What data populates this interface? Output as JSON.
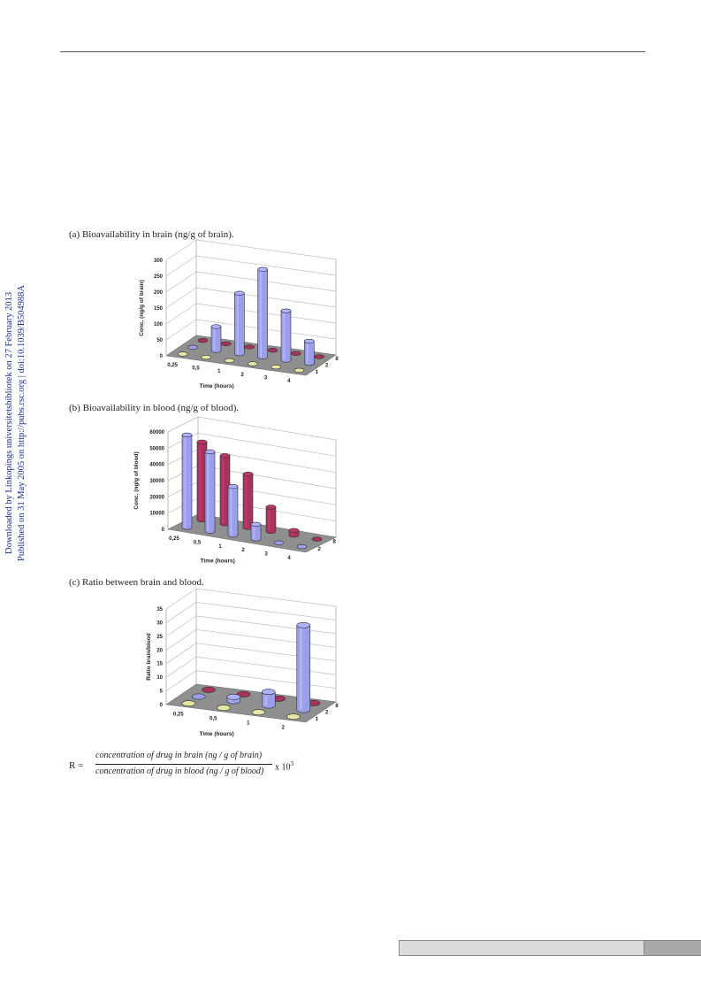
{
  "side_note": {
    "line1": "Downloaded by Linkopings universitetsbibliotek on 27 February 2013",
    "line2": "Published on 31 May 2005 on http://pubs.rsc.org | doi:10.1039/B504988A"
  },
  "colors": {
    "series_blue": "#9b9ee8",
    "series_red": "#a8325e",
    "series_yellow": "#e7e6a6",
    "floor": "#8f8f8f"
  },
  "chart_data": [
    {
      "type": "bar",
      "caption": "(a) Bioavailability in brain (ng/g of brain).",
      "xlabel": "Time (hours)",
      "ylabel": "Conc. (ng/g of brain)",
      "categories": [
        "0,25",
        "0,5",
        "1",
        "2",
        "3",
        "4"
      ],
      "depth_labels": [
        "8",
        "2",
        "1"
      ],
      "yticks": [
        "0",
        "50",
        "100",
        "150",
        "200",
        "250",
        "300"
      ],
      "ylim": [
        0,
        300
      ],
      "series": [
        {
          "name": "8",
          "values": [
            0,
            0,
            0,
            0,
            0,
            0
          ]
        },
        {
          "name": "2",
          "values": [
            0,
            75,
            190,
            275,
            155,
            70
          ]
        },
        {
          "name": "1",
          "values": [
            0,
            0,
            0,
            0,
            0,
            0
          ]
        }
      ]
    },
    {
      "type": "bar",
      "caption": "(b) Bioavailability in blood (ng/g of blood).",
      "xlabel": "Time (hours)",
      "ylabel": "Conc. (ng/g of blood)",
      "categories": [
        "0,25",
        "0,5",
        "1",
        "2",
        "3",
        "4"
      ],
      "depth_labels": [
        "8",
        "2"
      ],
      "yticks": [
        "0",
        "10000",
        "20000",
        "30000",
        "40000",
        "50000",
        "60000"
      ],
      "ylim": [
        0,
        60000
      ],
      "series": [
        {
          "name": "8",
          "values": [
            48000,
            42000,
            33000,
            15000,
            3000,
            0
          ]
        },
        {
          "name": "2",
          "values": [
            57000,
            49000,
            30000,
            9000,
            0,
            0
          ]
        }
      ]
    },
    {
      "type": "bar",
      "caption": "(c) Ratio between brain and blood.",
      "xlabel": "Time (hours)",
      "ylabel": "Ratio brain/blood",
      "categories": [
        "0,25",
        "0,5",
        "1",
        "2"
      ],
      "depth_labels": [
        "8",
        "2",
        "1"
      ],
      "yticks": [
        "0",
        "5",
        "10",
        "15",
        "20",
        "25",
        "30",
        "35"
      ],
      "ylim": [
        0,
        35
      ],
      "series": [
        {
          "name": "8",
          "values": [
            0,
            0,
            0,
            0
          ]
        },
        {
          "name": "2",
          "values": [
            0,
            1.5,
            5,
            31
          ]
        },
        {
          "name": "1",
          "values": [
            0,
            0,
            0,
            0
          ]
        }
      ]
    }
  ],
  "formula": {
    "lhs": "R =",
    "numerator": "concentration of drug in brain (ng / g of brain)",
    "denominator": "concentration of drug in blood (ng / g of blood)",
    "multiplier": "x 10",
    "exponent": "3"
  }
}
